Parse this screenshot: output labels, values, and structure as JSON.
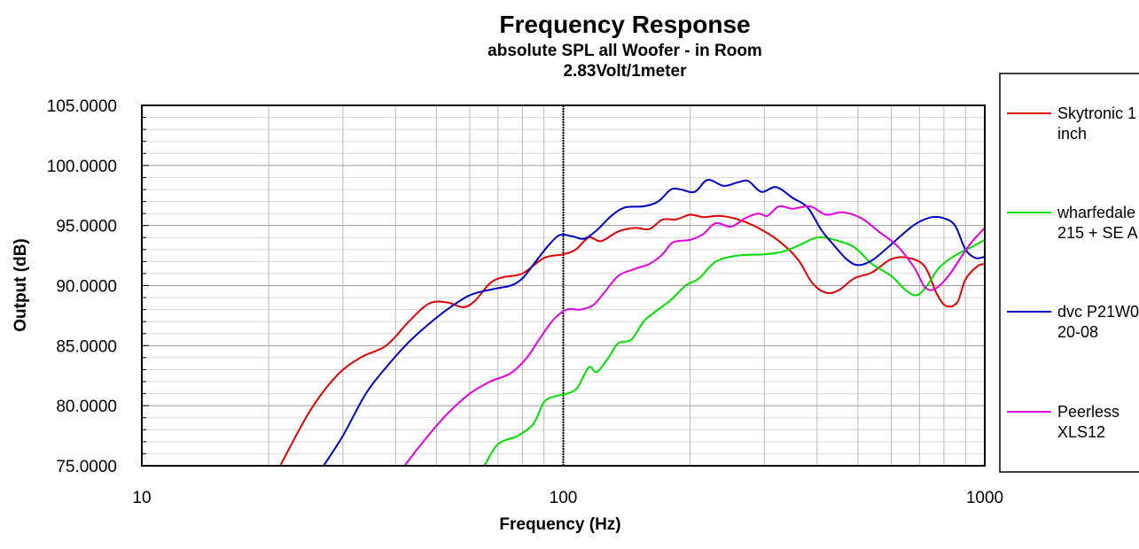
{
  "chart_data": {
    "type": "line",
    "title": "Frequency Response",
    "subtitle": [
      "absolute SPL all Woofer - in Room",
      "2.83Volt/1meter"
    ],
    "xlabel": "Frequency (Hz)",
    "ylabel": "Output (dB)",
    "xscale": "log",
    "xlim": [
      10,
      1000
    ],
    "ylim": [
      75,
      105
    ],
    "x_ticks": [
      "10",
      "100",
      "1000"
    ],
    "y_ticks": [
      "75.0000",
      "80.0000",
      "85.0000",
      "90.0000",
      "95.0000",
      "100.0000",
      "105.0000"
    ],
    "grid": true,
    "legend_position": "right",
    "marker_line": 100,
    "series": [
      {
        "name": "Skytronic 1 inch",
        "legend_lines": [
          "Skytronic 1",
          "inch"
        ],
        "color": "#e00000",
        "points": [
          [
            21.3,
            75
          ],
          [
            25,
            79.5
          ],
          [
            29,
            82.5
          ],
          [
            33,
            84
          ],
          [
            38,
            85
          ],
          [
            43,
            87
          ],
          [
            48,
            88.5
          ],
          [
            53,
            88.6
          ],
          [
            58,
            88.2
          ],
          [
            62,
            88.8
          ],
          [
            67,
            90.2
          ],
          [
            72,
            90.7
          ],
          [
            80,
            91
          ],
          [
            90,
            92.3
          ],
          [
            100,
            92.6
          ],
          [
            107,
            93
          ],
          [
            115,
            94
          ],
          [
            123,
            93.7
          ],
          [
            135,
            94.5
          ],
          [
            148,
            94.8
          ],
          [
            160,
            94.7
          ],
          [
            172,
            95.5
          ],
          [
            185,
            95.5
          ],
          [
            200,
            95.9
          ],
          [
            215,
            95.7
          ],
          [
            235,
            95.8
          ],
          [
            260,
            95.5
          ],
          [
            290,
            94.8
          ],
          [
            325,
            93.7
          ],
          [
            360,
            92.2
          ],
          [
            390,
            90.2
          ],
          [
            420,
            89.4
          ],
          [
            450,
            89.6
          ],
          [
            490,
            90.6
          ],
          [
            540,
            91.1
          ],
          [
            600,
            92.2
          ],
          [
            660,
            92.3
          ],
          [
            720,
            91.6
          ],
          [
            770,
            89.3
          ],
          [
            810,
            88.3
          ],
          [
            860,
            88.6
          ],
          [
            900,
            90.5
          ],
          [
            960,
            91.6
          ],
          [
            1000,
            91.8
          ]
        ]
      },
      {
        "name": "wharfedale 215 + SE A",
        "legend_lines": [
          "wharfedale",
          "215 + SE A"
        ],
        "color": "#00e000",
        "points": [
          [
            65,
            75
          ],
          [
            70,
            76.8
          ],
          [
            78,
            77.5
          ],
          [
            85,
            78.5
          ],
          [
            90,
            80.3
          ],
          [
            96,
            80.8
          ],
          [
            102,
            81
          ],
          [
            108,
            81.5
          ],
          [
            115,
            83.2
          ],
          [
            120,
            82.8
          ],
          [
            128,
            84
          ],
          [
            135,
            85.2
          ],
          [
            145,
            85.5
          ],
          [
            155,
            87
          ],
          [
            165,
            87.8
          ],
          [
            180,
            88.8
          ],
          [
            195,
            90
          ],
          [
            210,
            90.6
          ],
          [
            230,
            92
          ],
          [
            260,
            92.5
          ],
          [
            300,
            92.6
          ],
          [
            330,
            92.8
          ],
          [
            360,
            93.3
          ],
          [
            400,
            94
          ],
          [
            440,
            93.8
          ],
          [
            490,
            93.2
          ],
          [
            540,
            91.8
          ],
          [
            600,
            90.8
          ],
          [
            650,
            89.6
          ],
          [
            690,
            89.2
          ],
          [
            730,
            90
          ],
          [
            780,
            91.5
          ],
          [
            850,
            92.5
          ],
          [
            930,
            93.2
          ],
          [
            1000,
            93.8
          ]
        ]
      },
      {
        "name": "dvc P21W0 20-08",
        "legend_lines": [
          "dvc P21W0",
          "20-08"
        ],
        "color": "#0000c0",
        "points": [
          [
            27,
            75
          ],
          [
            30,
            77.5
          ],
          [
            34,
            81
          ],
          [
            38,
            83.2
          ],
          [
            43,
            85.3
          ],
          [
            48,
            86.8
          ],
          [
            53,
            88
          ],
          [
            60,
            89.2
          ],
          [
            68,
            89.7
          ],
          [
            75,
            90
          ],
          [
            80,
            90.6
          ],
          [
            86,
            92
          ],
          [
            92,
            93.3
          ],
          [
            98,
            94.2
          ],
          [
            105,
            94.1
          ],
          [
            112,
            93.9
          ],
          [
            120,
            94.6
          ],
          [
            130,
            95.8
          ],
          [
            140,
            96.5
          ],
          [
            155,
            96.6
          ],
          [
            168,
            97
          ],
          [
            180,
            98
          ],
          [
            190,
            98
          ],
          [
            205,
            97.8
          ],
          [
            220,
            98.8
          ],
          [
            240,
            98.3
          ],
          [
            260,
            98.6
          ],
          [
            275,
            98.7
          ],
          [
            295,
            97.8
          ],
          [
            320,
            98.2
          ],
          [
            350,
            97.3
          ],
          [
            380,
            96.5
          ],
          [
            410,
            94.6
          ],
          [
            440,
            93.3
          ],
          [
            470,
            92.2
          ],
          [
            500,
            91.7
          ],
          [
            540,
            92.1
          ],
          [
            590,
            93.2
          ],
          [
            640,
            94.3
          ],
          [
            690,
            95.2
          ],
          [
            750,
            95.7
          ],
          [
            800,
            95.6
          ],
          [
            850,
            95
          ],
          [
            900,
            93
          ],
          [
            950,
            92.3
          ],
          [
            1000,
            92.4
          ]
        ]
      },
      {
        "name": "Peerless XLS12",
        "legend_lines": [
          "Peerless",
          "XLS12"
        ],
        "color": "#e000e0",
        "points": [
          [
            42,
            75
          ],
          [
            47,
            77.2
          ],
          [
            53,
            79.3
          ],
          [
            60,
            81
          ],
          [
            67,
            82
          ],
          [
            75,
            82.7
          ],
          [
            82,
            84
          ],
          [
            88,
            85.6
          ],
          [
            95,
            87.2
          ],
          [
            102,
            88
          ],
          [
            110,
            88
          ],
          [
            118,
            88.4
          ],
          [
            125,
            89.4
          ],
          [
            135,
            90.8
          ],
          [
            148,
            91.4
          ],
          [
            160,
            91.8
          ],
          [
            172,
            92.6
          ],
          [
            182,
            93.6
          ],
          [
            200,
            93.8
          ],
          [
            215,
            94.3
          ],
          [
            230,
            95.2
          ],
          [
            250,
            94.9
          ],
          [
            270,
            95.6
          ],
          [
            290,
            96
          ],
          [
            305,
            95.8
          ],
          [
            325,
            96.6
          ],
          [
            350,
            96.4
          ],
          [
            385,
            96.6
          ],
          [
            420,
            95.9
          ],
          [
            460,
            96.1
          ],
          [
            510,
            95.6
          ],
          [
            560,
            94.5
          ],
          [
            620,
            93.3
          ],
          [
            680,
            91.5
          ],
          [
            720,
            89.9
          ],
          [
            760,
            89.7
          ],
          [
            820,
            90.8
          ],
          [
            880,
            92.4
          ],
          [
            930,
            93.6
          ],
          [
            1000,
            94.8
          ]
        ]
      }
    ]
  }
}
